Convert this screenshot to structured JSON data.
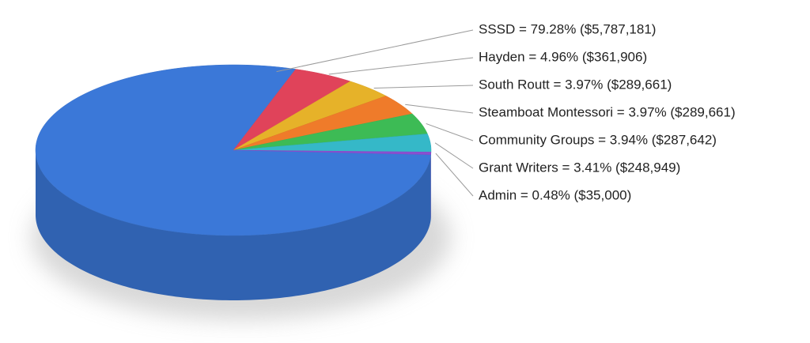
{
  "chart_data": {
    "type": "pie",
    "values": [
      79.28,
      4.96,
      3.97,
      3.97,
      3.94,
      3.41,
      0.48
    ],
    "value_labels": [
      "SSSD = 79.28% ($5,787,181)",
      "Hayden = 4.96% ($361,906)",
      "South Routt = 3.97% ($289,661)",
      "Steamboat Montessori = 3.97% ($289,661)",
      "Community Groups = 3.94% ($287,642)",
      "Grant Writers = 3.41% ($248,949)",
      "Admin = 0.48% ($35,000)"
    ],
    "colors": [
      "#3b78d8",
      "#e0435a",
      "#e6b229",
      "#ef7b2a",
      "#3dbb55",
      "#35b8c8",
      "#8a4fd0"
    ]
  }
}
